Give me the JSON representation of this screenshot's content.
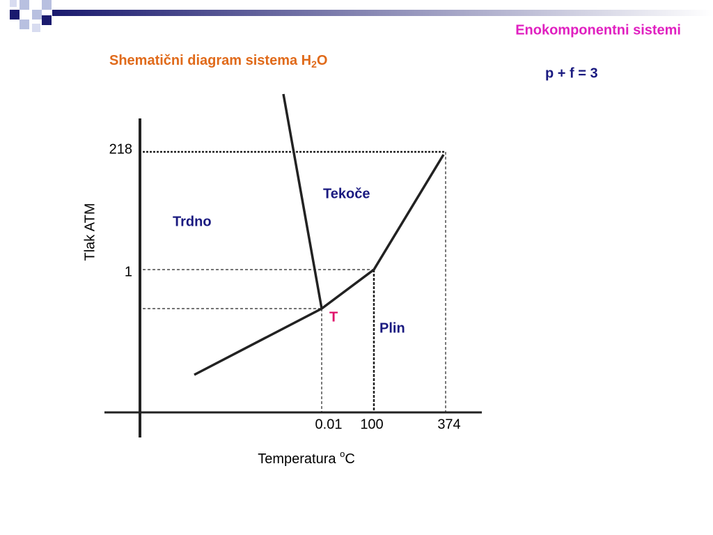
{
  "header": {
    "topic": "Enokomponentni sistemi",
    "title": {
      "text": "Shematični diagram sistema H",
      "subscript": "2",
      "after": "O"
    },
    "rule": "p + f = 3"
  },
  "diagram": {
    "y_axis_label": "Tlak ATM",
    "x_axis_label": {
      "text": "Temperatura ",
      "superscript": "o",
      "after": "C"
    },
    "y_tick_labels": [
      "218",
      "1"
    ],
    "x_tick_labels": [
      "0.01",
      "100",
      "374"
    ],
    "regions": {
      "solid": "Trdno",
      "liquid": "Tekoče",
      "gas": "Plin",
      "triple_point": "T"
    }
  }
}
